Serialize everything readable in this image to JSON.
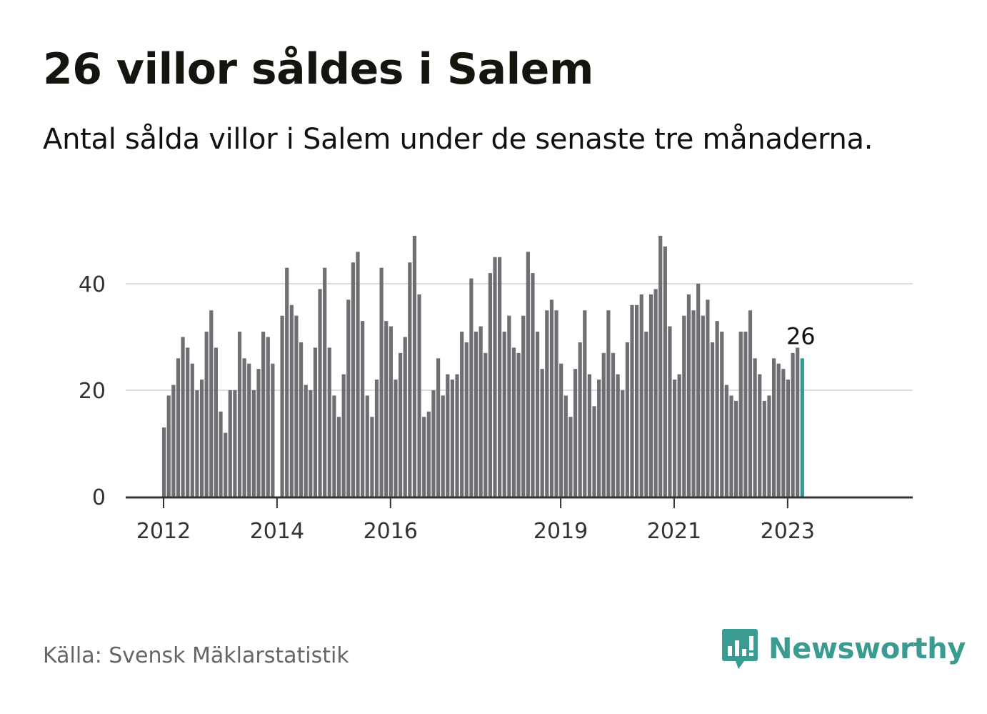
{
  "header": {
    "title": "26 villor såldes i Salem",
    "subtitle": "Antal sålda villor i Salem under de senaste tre månaderna."
  },
  "footer": {
    "source": "Källa: Svensk Mäklarstatistik",
    "logo_text": "Newsworthy",
    "logo_icon": "bar-chart-speech-bubble-icon"
  },
  "colors": {
    "bar": "#6e6e73",
    "highlight": "#2a9d8f",
    "grid": "#dcdcdc",
    "axis": "#333333",
    "brand": "#3a9b91"
  },
  "chart_data": {
    "type": "bar",
    "title": "26 villor såldes i Salem",
    "subtitle": "Antal sålda villor i Salem under de senaste tre månaderna.",
    "xlabel": "",
    "ylabel": "",
    "ylim": [
      0,
      50
    ],
    "yticks": [
      0,
      20,
      40
    ],
    "grid": true,
    "x_ticks": [
      {
        "label": "2012",
        "index": 0
      },
      {
        "label": "2014",
        "index": 24
      },
      {
        "label": "2016",
        "index": 48
      },
      {
        "label": "2019",
        "index": 84
      },
      {
        "label": "2021",
        "index": 108
      },
      {
        "label": "2023",
        "index": 132
      }
    ],
    "values": [
      13,
      19,
      21,
      26,
      30,
      28,
      25,
      20,
      22,
      31,
      35,
      28,
      16,
      12,
      20,
      20,
      31,
      26,
      25,
      20,
      24,
      31,
      30,
      25,
      null,
      34,
      43,
      36,
      34,
      29,
      21,
      20,
      28,
      39,
      43,
      28,
      19,
      15,
      23,
      37,
      44,
      46,
      33,
      19,
      15,
      22,
      43,
      33,
      32,
      22,
      27,
      30,
      44,
      49,
      38,
      15,
      16,
      20,
      26,
      19,
      23,
      22,
      23,
      31,
      29,
      41,
      31,
      32,
      27,
      42,
      45,
      45,
      31,
      34,
      28,
      27,
      34,
      46,
      42,
      31,
      24,
      35,
      37,
      35,
      25,
      19,
      15,
      24,
      29,
      35,
      23,
      17,
      22,
      27,
      35,
      27,
      23,
      20,
      29,
      36,
      36,
      38,
      31,
      38,
      39,
      49,
      47,
      32,
      22,
      23,
      34,
      38,
      35,
      40,
      34,
      37,
      29,
      33,
      31,
      21,
      19,
      18,
      31,
      31,
      35,
      26,
      23,
      18,
      19,
      26,
      25,
      24,
      22,
      27,
      28,
      26
    ],
    "highlight_index": 135,
    "highlight_label": "26"
  }
}
